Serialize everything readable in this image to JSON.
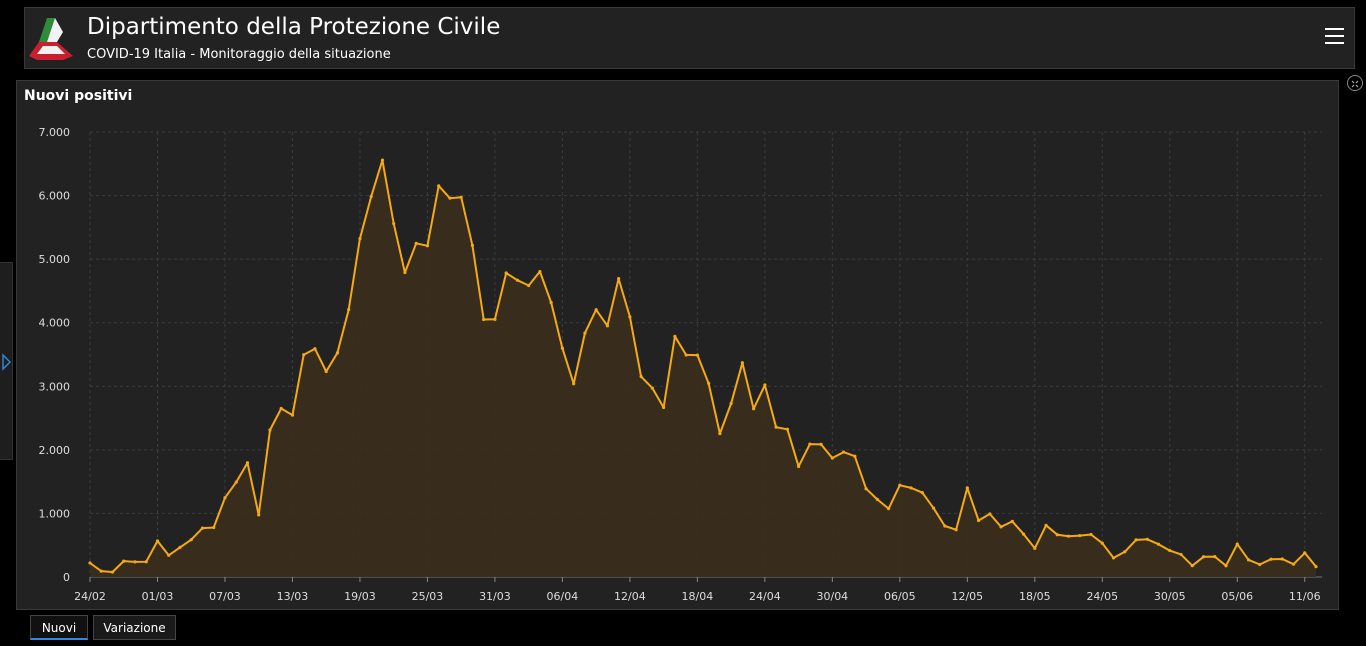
{
  "header": {
    "title": "Dipartimento della Protezione Civile",
    "subtitle": "COVID-19 Italia - Monitoraggio della situazione",
    "logo_icon": "protezione-civile-logo",
    "menu_icon": "hamburger-menu-icon"
  },
  "panel": {
    "title": "Nuovi positivi"
  },
  "tabs": [
    {
      "label": "Nuovi",
      "active": true
    },
    {
      "label": "Variazione",
      "active": false
    }
  ],
  "colors": {
    "line": "#f5a914",
    "area": "#3a2e1c",
    "background": "#222222",
    "grid": "#3c3c3c",
    "tab_active": "#2b8be0"
  },
  "chart_data": {
    "type": "area",
    "title": "Nuovi positivi",
    "xlabel": "",
    "ylabel": "",
    "ylim": [
      0,
      7000
    ],
    "yticks": [
      0,
      1000,
      2000,
      3000,
      4000,
      5000,
      6000,
      7000
    ],
    "ytick_labels": [
      "0",
      "1.000",
      "2.000",
      "3.000",
      "4.000",
      "5.000",
      "6.000",
      "7.000"
    ],
    "xtick_labels": [
      "24/02",
      "01/03",
      "07/03",
      "13/03",
      "19/03",
      "25/03",
      "31/03",
      "06/04",
      "12/04",
      "18/04",
      "24/04",
      "30/04",
      "06/05",
      "12/05",
      "18/05",
      "24/05",
      "30/05",
      "05/06",
      "11/06"
    ],
    "grid": true,
    "x": [
      "24/02",
      "25/02",
      "26/02",
      "27/02",
      "28/02",
      "29/02",
      "01/03",
      "02/03",
      "03/03",
      "04/03",
      "05/03",
      "06/03",
      "07/03",
      "08/03",
      "09/03",
      "10/03",
      "11/03",
      "12/03",
      "13/03",
      "14/03",
      "15/03",
      "16/03",
      "17/03",
      "18/03",
      "19/03",
      "20/03",
      "21/03",
      "22/03",
      "23/03",
      "24/03",
      "25/03",
      "26/03",
      "27/03",
      "28/03",
      "29/03",
      "30/03",
      "31/03",
      "01/04",
      "02/04",
      "03/04",
      "04/04",
      "05/04",
      "06/04",
      "07/04",
      "08/04",
      "09/04",
      "10/04",
      "11/04",
      "12/04",
      "13/04",
      "14/04",
      "15/04",
      "16/04",
      "17/04",
      "18/04",
      "19/04",
      "20/04",
      "21/04",
      "22/04",
      "23/04",
      "24/04",
      "25/04",
      "26/04",
      "27/04",
      "28/04",
      "29/04",
      "30/04",
      "01/05",
      "02/05",
      "03/05",
      "04/05",
      "05/05",
      "06/05",
      "07/05",
      "08/05",
      "09/05",
      "10/05",
      "11/05",
      "12/05",
      "13/05",
      "14/05",
      "15/05",
      "16/05",
      "17/05",
      "18/05",
      "19/05",
      "20/05",
      "21/05",
      "22/05",
      "23/05",
      "24/05",
      "25/05",
      "26/05",
      "27/05",
      "28/05",
      "29/05",
      "30/05",
      "31/05",
      "01/06",
      "02/06",
      "03/06",
      "04/06",
      "05/06",
      "06/06",
      "07/06",
      "08/06",
      "09/06",
      "10/06",
      "11/06",
      "12/06"
    ],
    "series": [
      {
        "values": [
          221,
          93,
          78,
          250,
          238,
          240,
          566,
          342,
          466,
          587,
          769,
          778,
          1247,
          1492,
          1797,
          977,
          2313,
          2651,
          2547,
          3497,
          3590,
          3233,
          3526,
          4207,
          5322,
          5986,
          6557,
          5560,
          4789,
          5249,
          5210,
          6153,
          5959,
          5974,
          5217,
          4050,
          4053,
          4782,
          4668,
          4585,
          4805,
          4316,
          3599,
          3039,
          3836,
          4204,
          3951,
          4694,
          4092,
          3153,
          2972,
          2667,
          3786,
          3493,
          3491,
          3047,
          2256,
          2729,
          3370,
          2646,
          3021,
          2357,
          2324,
          1739,
          2091,
          2086,
          1872,
          1965,
          1900,
          1389,
          1221,
          1075,
          1444,
          1401,
          1327,
          1083,
          802,
          744,
          1402,
          888,
          992,
          789,
          875,
          675,
          451,
          813,
          665,
          642,
          652,
          669,
          531,
          300,
          397,
          584,
          593,
          516,
          416,
          355,
          178,
          318,
          321,
          177,
          518,
          270,
          197,
          280,
          283,
          202,
          379,
          163
        ]
      }
    ]
  }
}
